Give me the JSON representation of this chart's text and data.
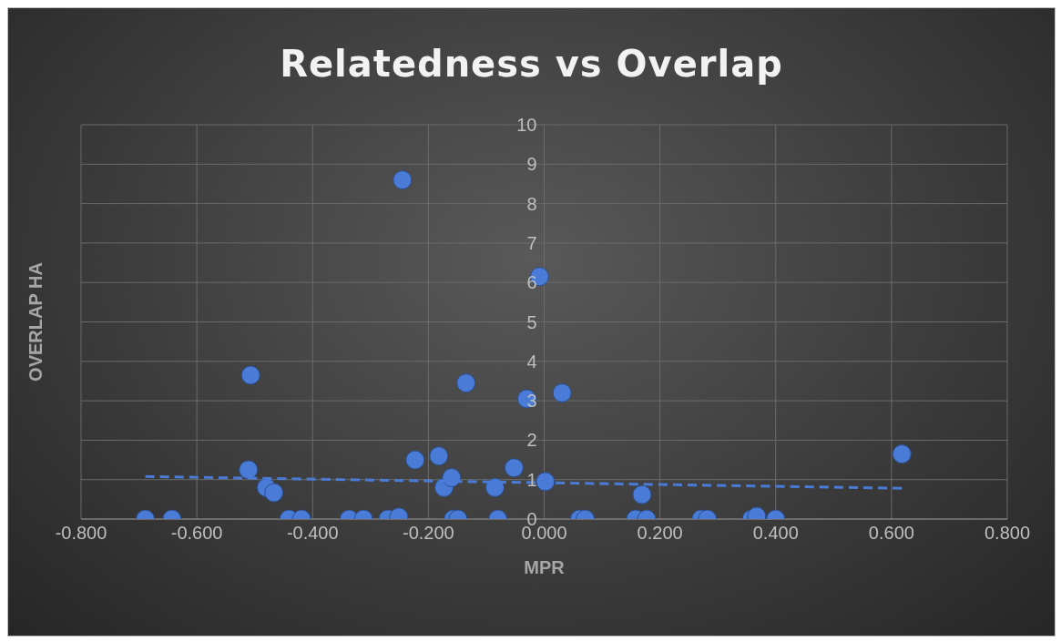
{
  "chart_data": {
    "type": "scatter",
    "title": "Relatedness vs Overlap",
    "xlabel": "MPR",
    "ylabel": "OVERLAP HA",
    "xlim": [
      -0.8,
      0.8
    ],
    "xticks": [
      {
        "value": -0.8,
        "label": "-0.800"
      },
      {
        "value": -0.6,
        "label": "-0.600"
      },
      {
        "value": -0.4,
        "label": "-0.400"
      },
      {
        "value": -0.2,
        "label": "-0.200"
      },
      {
        "value": 0,
        "label": "0.000"
      },
      {
        "value": 0.2,
        "label": "0.200"
      },
      {
        "value": 0.4,
        "label": "0.400"
      },
      {
        "value": 0.6,
        "label": "0.600"
      },
      {
        "value": 0.8,
        "label": "0.800"
      }
    ],
    "ylim": [
      0,
      10
    ],
    "yticks": [
      0,
      1,
      2,
      3,
      4,
      5,
      6,
      7,
      8,
      9,
      10
    ],
    "grid": true,
    "marker": "circle",
    "series": [
      {
        "type": "scatter",
        "color": "#4a7bd6",
        "x": [
          -0.689,
          -0.643,
          -0.507,
          -0.511,
          -0.48,
          -0.467,
          -0.441,
          -0.419,
          -0.337,
          -0.312,
          -0.27,
          -0.251,
          -0.245,
          -0.223,
          -0.182,
          -0.173,
          -0.16,
          -0.157,
          -0.149,
          -0.135,
          -0.085,
          -0.08,
          -0.052,
          -0.03,
          -0.008,
          0.002,
          0.031,
          0.061,
          0.071,
          0.158,
          0.177,
          0.169,
          0.271,
          0.282,
          0.358,
          0.367,
          0.4,
          0.618
        ],
        "values": [
          0,
          0,
          3.65,
          1.25,
          0.8,
          0.67,
          0,
          0,
          0,
          0,
          0,
          0.05,
          8.6,
          1.5,
          1.6,
          0.8,
          1.05,
          0,
          0,
          3.45,
          0.8,
          0,
          1.3,
          3.05,
          6.15,
          0.95,
          3.2,
          0,
          0,
          0,
          0,
          0.62,
          0,
          0,
          0,
          0.07,
          0,
          1.65
        ]
      },
      {
        "type": "line",
        "color": "#4a7bd6",
        "line_style": "dashed",
        "marker": "none",
        "x": [
          -0.689,
          0.618
        ],
        "values": [
          1.08,
          0.78
        ]
      }
    ]
  }
}
